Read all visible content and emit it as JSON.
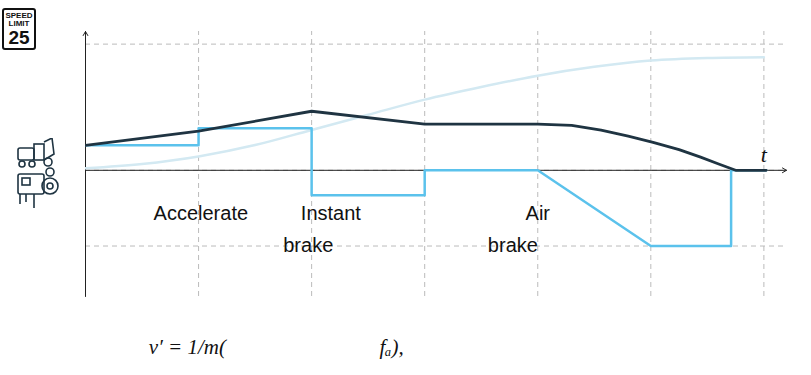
{
  "chart_data": {
    "type": "line",
    "x_label": "t",
    "xlim": [
      0,
      6.2
    ],
    "ylim": [
      -5,
      5.5
    ],
    "xticks": [
      1,
      2,
      3,
      4,
      5,
      6
    ],
    "yticks": [
      -3,
      0,
      5
    ],
    "grid": true,
    "tick_labels": false,
    "series": [
      {
        "color": "#d3e9f2",
        "line_style": "smooth",
        "x": [
          0,
          0.5,
          1,
          1.5,
          2,
          2.5,
          3,
          3.5,
          4,
          4.5,
          5,
          5.5,
          6
        ],
        "values": [
          0.08,
          0.25,
          0.55,
          1.0,
          1.6,
          2.2,
          2.8,
          3.3,
          3.75,
          4.1,
          4.35,
          4.45,
          4.48
        ]
      },
      {
        "color": "#5bc2ec",
        "line_style": "solid",
        "x": [
          0,
          1,
          1,
          2,
          2,
          3,
          3,
          4,
          5,
          5.71,
          5.71,
          6.02
        ],
        "values": [
          0.99,
          0.99,
          1.67,
          1.67,
          -0.99,
          -0.99,
          0,
          0,
          -3,
          -3,
          0,
          0
        ]
      },
      {
        "color": "#1f3442",
        "line_style": "solid",
        "x": [
          0,
          1,
          2,
          3,
          4,
          4.3,
          4.56,
          4.8,
          5.02,
          5.25,
          5.44,
          5.6,
          5.75,
          6.02
        ],
        "values": [
          0.99,
          1.55,
          2.34,
          1.83,
          1.83,
          1.78,
          1.59,
          1.35,
          1.11,
          0.82,
          0.52,
          0.25,
          0,
          0
        ]
      }
    ],
    "annotations": [
      {
        "text": "Accelerate",
        "x": 1.02,
        "y": -1.7
      },
      {
        "text": "Instant",
        "x": 2.17,
        "y": -1.7
      },
      {
        "text": "brake",
        "x": 1.97,
        "y": -3.0
      },
      {
        "text": "Air",
        "x": 4.0,
        "y": -1.7
      },
      {
        "text": "brake",
        "x": 3.78,
        "y": -3.0
      }
    ],
    "formula": [
      "v′ = 1/m(",
      "fₐ),"
    ],
    "sign": [
      "SPEED",
      "LIMIT",
      "25"
    ]
  }
}
